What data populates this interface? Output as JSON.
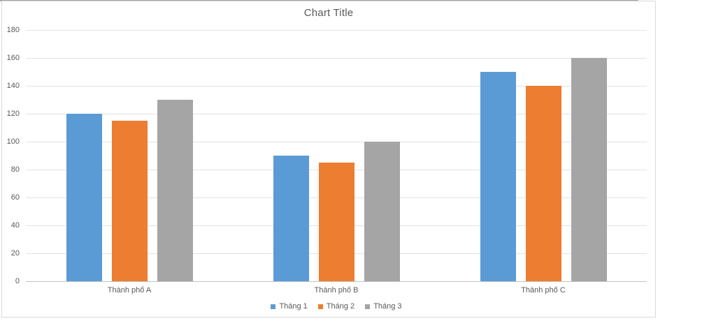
{
  "chart_data": {
    "type": "bar",
    "title": "Chart Title",
    "categories": [
      "Thành phố A",
      "Thành phố B",
      "Thành phố C"
    ],
    "series": [
      {
        "name": "Tháng 1",
        "color": "#5B9BD5",
        "values": [
          120,
          90,
          150
        ]
      },
      {
        "name": "Tháng 2",
        "color": "#ED7D31",
        "values": [
          115,
          85,
          140
        ]
      },
      {
        "name": "Tháng 3",
        "color": "#A5A5A5",
        "values": [
          130,
          100,
          160
        ]
      }
    ],
    "ylim": [
      0,
      180
    ],
    "yticks": [
      0,
      20,
      40,
      60,
      80,
      100,
      120,
      140,
      160,
      180
    ],
    "xlabel": "",
    "ylabel": "",
    "grid": true,
    "legend_position": "bottom",
    "colors": {
      "title_text": "#595959",
      "axis_text": "#595959",
      "gridline": "#e2e2e2",
      "axis_line": "#c3c3c3",
      "frame_border": "#d9d9d9"
    }
  }
}
